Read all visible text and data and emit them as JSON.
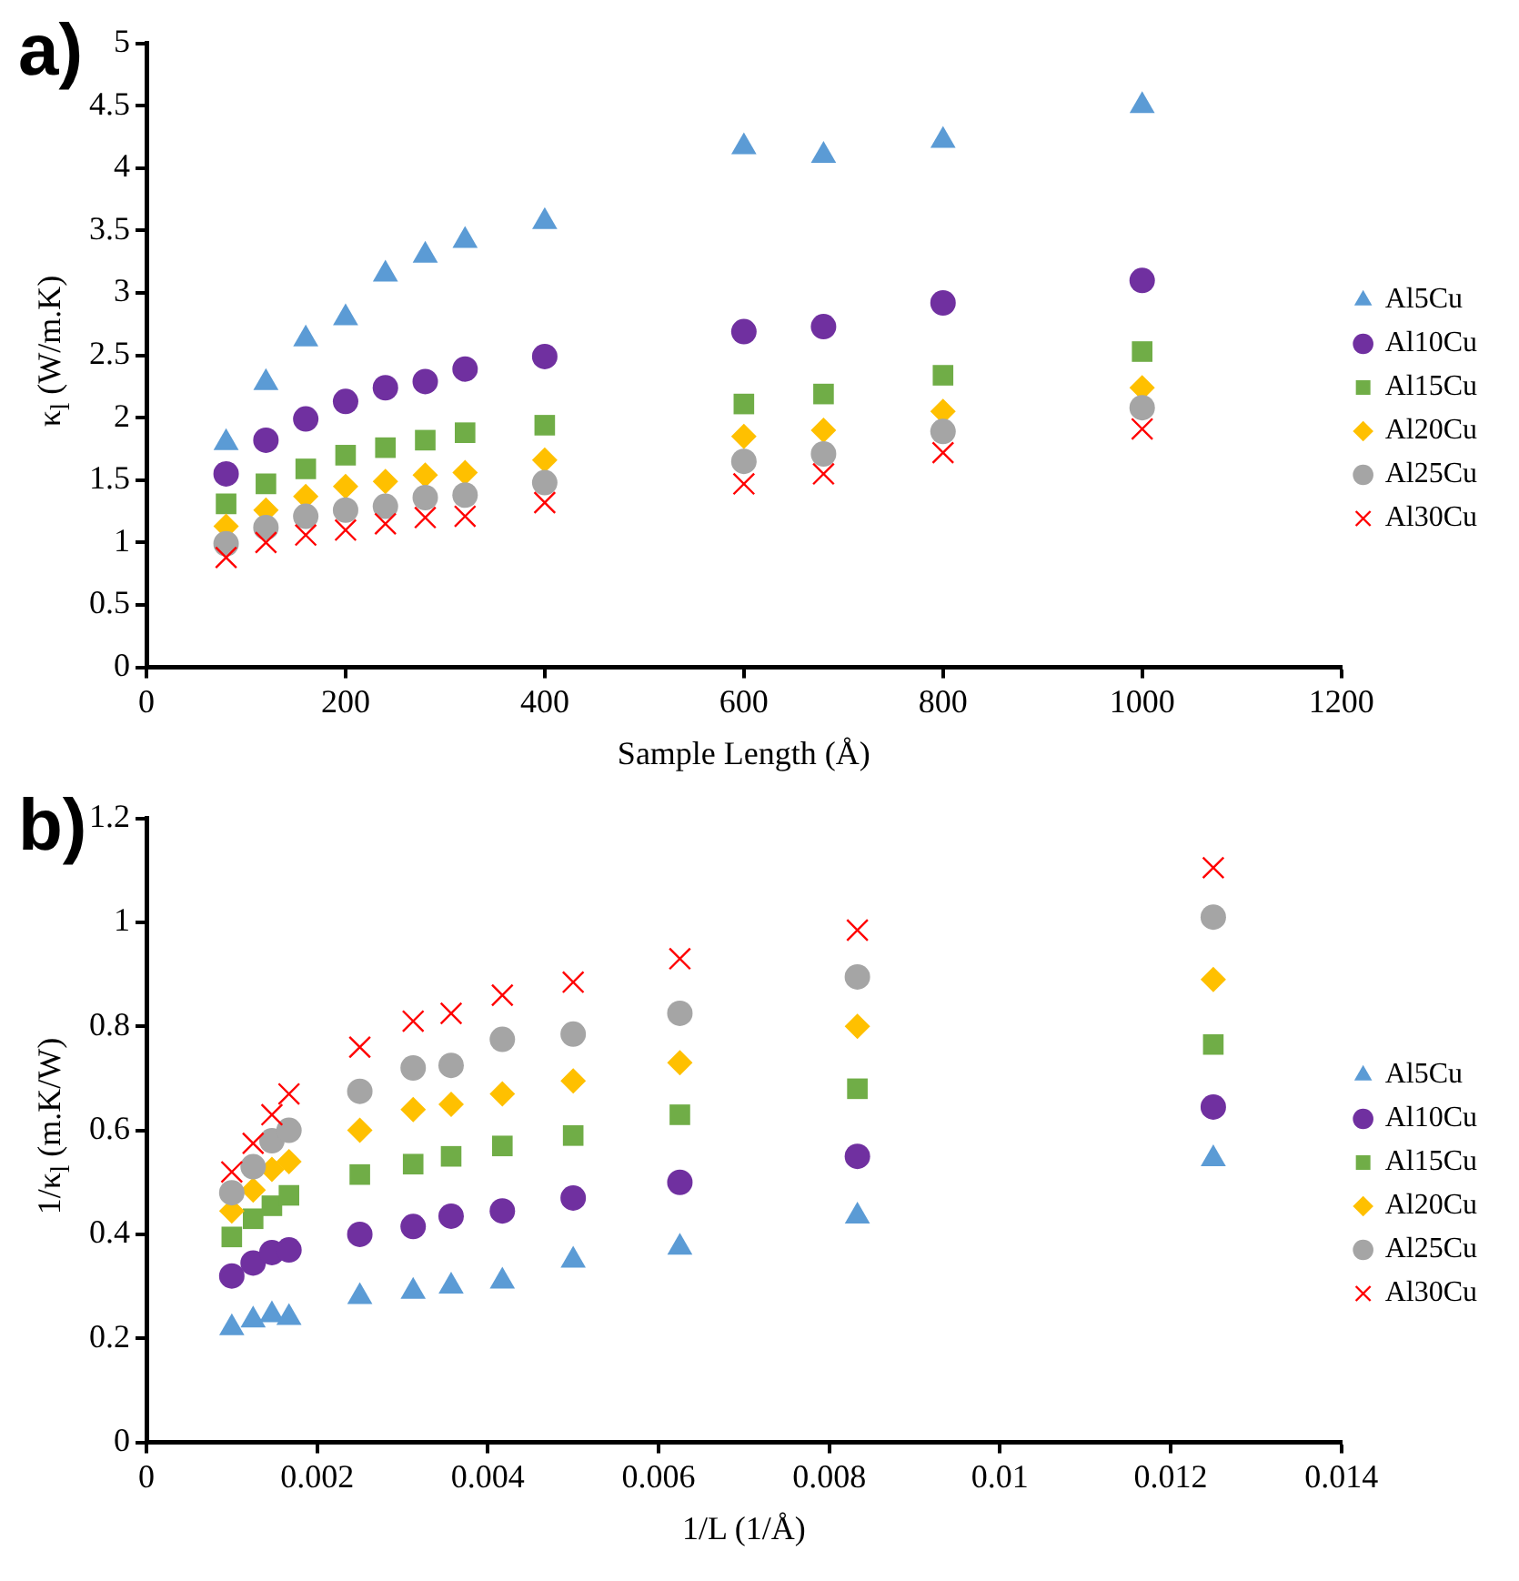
{
  "chart_data": [
    {
      "type": "scatter",
      "annotations": [
        "a)"
      ],
      "xlabel": "Sample Length (Å)",
      "ylabel": "κ$_{l}$ (W/m.K)",
      "xlim": [
        0,
        1200
      ],
      "xticks": [
        0,
        200,
        400,
        600,
        800,
        1000,
        1200
      ],
      "ylim": [
        0,
        5
      ],
      "yticks": [
        0,
        0.5,
        1,
        1.5,
        2,
        2.5,
        3,
        3.5,
        4,
        4.5,
        5
      ],
      "grid": false,
      "legend": "right",
      "x": [
        80,
        120,
        160,
        200,
        240,
        280,
        320,
        400,
        600,
        680,
        800,
        1000
      ],
      "series": [
        {
          "name": "Al5Cu",
          "color": "#5b9bd5",
          "marker": "triangle",
          "values": [
            1.8,
            2.28,
            2.63,
            2.8,
            3.15,
            3.3,
            3.42,
            3.57,
            4.17,
            4.1,
            4.22,
            4.5
          ]
        },
        {
          "name": "Al10Cu",
          "color": "#7030a0",
          "marker": "circle",
          "values": [
            1.55,
            1.82,
            1.99,
            2.13,
            2.24,
            2.29,
            2.39,
            2.49,
            2.69,
            2.73,
            2.92,
            3.1
          ]
        },
        {
          "name": "Al15Cu",
          "color": "#70ad47",
          "marker": "square",
          "values": [
            1.31,
            1.47,
            1.59,
            1.7,
            1.76,
            1.82,
            1.88,
            1.94,
            2.11,
            2.19,
            2.34,
            2.53
          ]
        },
        {
          "name": "Al20Cu",
          "color": "#ffc000",
          "marker": "diamond",
          "values": [
            1.13,
            1.26,
            1.37,
            1.45,
            1.49,
            1.54,
            1.56,
            1.66,
            1.85,
            1.9,
            2.05,
            2.24
          ]
        },
        {
          "name": "Al25Cu",
          "color": "#a5a5a5",
          "marker": "circle",
          "values": [
            0.99,
            1.12,
            1.21,
            1.26,
            1.29,
            1.36,
            1.38,
            1.48,
            1.65,
            1.71,
            1.89,
            2.08
          ]
        },
        {
          "name": "Al30Cu",
          "color": "#ff0000",
          "marker": "cross",
          "values": [
            0.88,
            1.0,
            1.06,
            1.1,
            1.15,
            1.2,
            1.21,
            1.32,
            1.47,
            1.55,
            1.72,
            1.91
          ]
        }
      ]
    },
    {
      "type": "scatter",
      "annotations": [
        "b)"
      ],
      "xlabel": "1/L (1/Å)",
      "ylabel": "1/κ$_{l}$ (m.K/W)",
      "xlim": [
        0,
        0.014
      ],
      "xticks": [
        0,
        0.002,
        0.004,
        0.006,
        0.008,
        0.01,
        0.012,
        0.014
      ],
      "ylim": [
        0,
        1.2
      ],
      "yticks": [
        0,
        0.2,
        0.4,
        0.6,
        0.8,
        1,
        1.2
      ],
      "grid": false,
      "legend": "right",
      "x": [
        0.001,
        0.00125,
        0.00147,
        0.00167,
        0.0025,
        0.003125,
        0.00357,
        0.00417,
        0.005,
        0.00625,
        0.00833,
        0.0125
      ],
      "series": [
        {
          "name": "Al5Cu",
          "color": "#5b9bd5",
          "marker": "triangle",
          "values": [
            0.22,
            0.235,
            0.245,
            0.24,
            0.28,
            0.29,
            0.3,
            0.31,
            0.35,
            0.375,
            0.435,
            0.545
          ]
        },
        {
          "name": "Al10Cu",
          "color": "#7030a0",
          "marker": "circle",
          "values": [
            0.32,
            0.345,
            0.365,
            0.37,
            0.4,
            0.415,
            0.435,
            0.445,
            0.47,
            0.5,
            0.55,
            0.645
          ]
        },
        {
          "name": "Al15Cu",
          "color": "#70ad47",
          "marker": "square",
          "values": [
            0.395,
            0.43,
            0.455,
            0.475,
            0.515,
            0.535,
            0.55,
            0.57,
            0.59,
            0.63,
            0.68,
            0.765
          ]
        },
        {
          "name": "Al20Cu",
          "color": "#ffc000",
          "marker": "diamond",
          "values": [
            0.445,
            0.485,
            0.525,
            0.54,
            0.6,
            0.64,
            0.65,
            0.67,
            0.695,
            0.73,
            0.8,
            0.89
          ]
        },
        {
          "name": "Al25Cu",
          "color": "#a5a5a5",
          "marker": "circle",
          "values": [
            0.48,
            0.53,
            0.58,
            0.6,
            0.675,
            0.72,
            0.725,
            0.775,
            0.785,
            0.825,
            0.895,
            1.01
          ]
        },
        {
          "name": "Al30Cu",
          "color": "#ff0000",
          "marker": "cross",
          "values": [
            0.52,
            0.575,
            0.63,
            0.67,
            0.76,
            0.81,
            0.825,
            0.86,
            0.885,
            0.93,
            0.985,
            1.105
          ]
        }
      ]
    }
  ]
}
